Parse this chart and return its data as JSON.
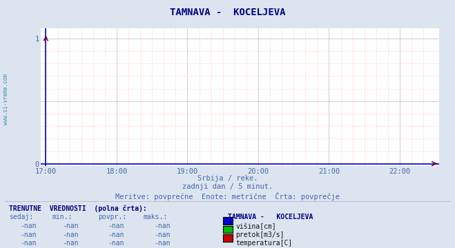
{
  "title": "TAMNAVA -  KOCELJEVA",
  "title_color": "#000080",
  "bg_color": "#dce4f0",
  "plot_bg_color": "#ffffff",
  "grid_color_major": "#8888bb",
  "grid_color_minor": "#ffaaaa",
  "x_ticks": [
    "17:00",
    "18:00",
    "19:00",
    "20:00",
    "21:00",
    "22:00"
  ],
  "x_tick_positions": [
    0,
    72,
    144,
    216,
    288,
    360
  ],
  "x_max": 390,
  "y_ticks": [
    0,
    1
  ],
  "ylim": [
    -0.02,
    1.08
  ],
  "xlim": [
    -5,
    400
  ],
  "tick_color": "#4466aa",
  "watermark": "www.si-vreme.com",
  "subtitle1": "Srbija / reke.",
  "subtitle2": "zadnji dan / 5 minut.",
  "subtitle3": "Meritve: povprečne  Enote: metrične  Črta: povprečje",
  "subtitle_color": "#4466aa",
  "table_header": "TRENUTNE  VREDNOSTI  (polna črta):",
  "table_header_color": "#000080",
  "col_headers": [
    "sedaj:",
    "min.:",
    "povpr.:",
    "maks.:"
  ],
  "col_header_color": "#4466aa",
  "station_name": "TAMNAVA -   KOCELJEVA",
  "station_color": "#000080",
  "rows": [
    {
      "values": [
        "-nan",
        "-nan",
        "-nan",
        "-nan"
      ],
      "legend_color": "#0000cc",
      "legend_label": "višina[cm]"
    },
    {
      "values": [
        "-nan",
        "-nan",
        "-nan",
        "-nan"
      ],
      "legend_color": "#00bb00",
      "legend_label": "pretok[m3/s]"
    },
    {
      "values": [
        "-nan",
        "-nan",
        "-nan",
        "-nan"
      ],
      "legend_color": "#cc0000",
      "legend_label": "temperatura[C]"
    }
  ],
  "nan_color": "#4466aa",
  "axis_line_color": "#0000cc",
  "arrow_color": "#880000",
  "watermark_color": "#4488aa"
}
